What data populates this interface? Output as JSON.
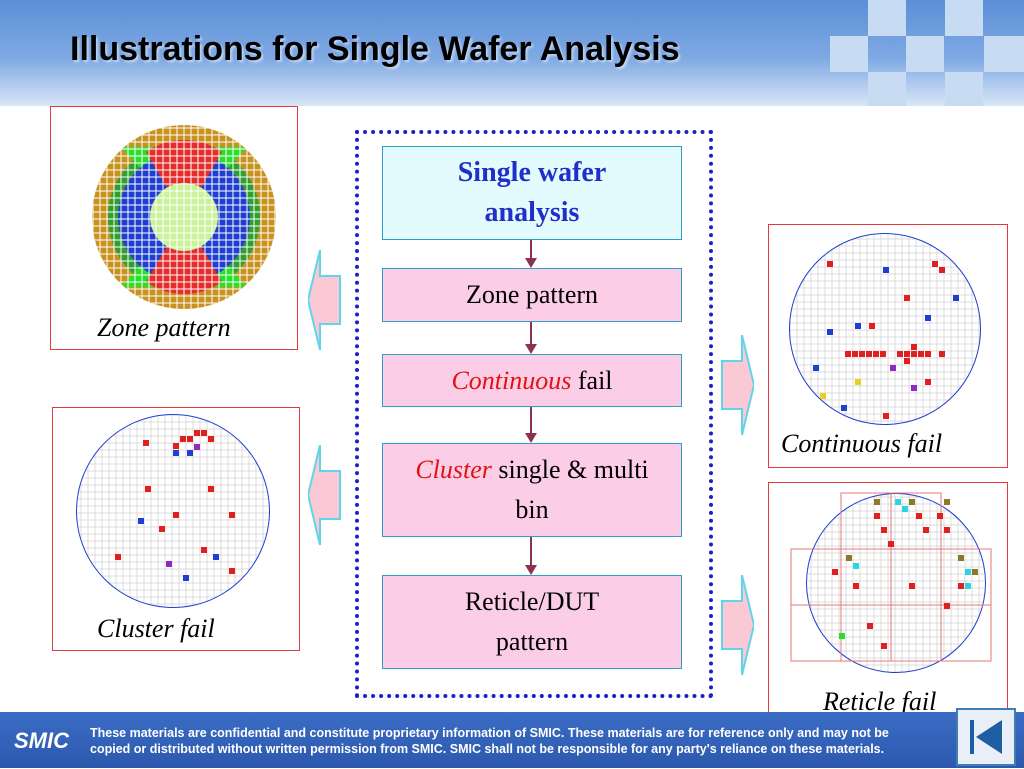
{
  "title": "Illustrations for Single Wafer Analysis",
  "flow": {
    "box1": "Single wafer analysis",
    "box2": "Zone pattern",
    "box3_red": "Continuous",
    "box3_rest": " fail",
    "box4_red": "Cluster",
    "box4_rest": " single & multi bin",
    "box5": "Reticle/DUT pattern"
  },
  "captions": {
    "zone": "Zone pattern",
    "cluster": "Cluster fail",
    "continuous": "Continuous fail",
    "reticle": "Reticle fail"
  },
  "footer": {
    "logo": "SMIC",
    "disclaimer_line1": "These materials are confidential and constitute proprietary information of SMIC.  These materials are for reference only and may not be",
    "disclaimer_line2": "copied or distributed without written permission from SMIC.  SMIC shall not be responsible for any party's reliance on these materials."
  },
  "colors": {
    "header_blue": "#5b8fd6",
    "frame_blue": "#1b21c9",
    "box_pink": "#fccde6",
    "box_cyan": "#e4fbfd",
    "accent_red": "#e31212",
    "figure_border": "#e43a3a"
  },
  "icons": {
    "nav": "first-slide-icon",
    "arrows": "block-arrow-icon"
  }
}
